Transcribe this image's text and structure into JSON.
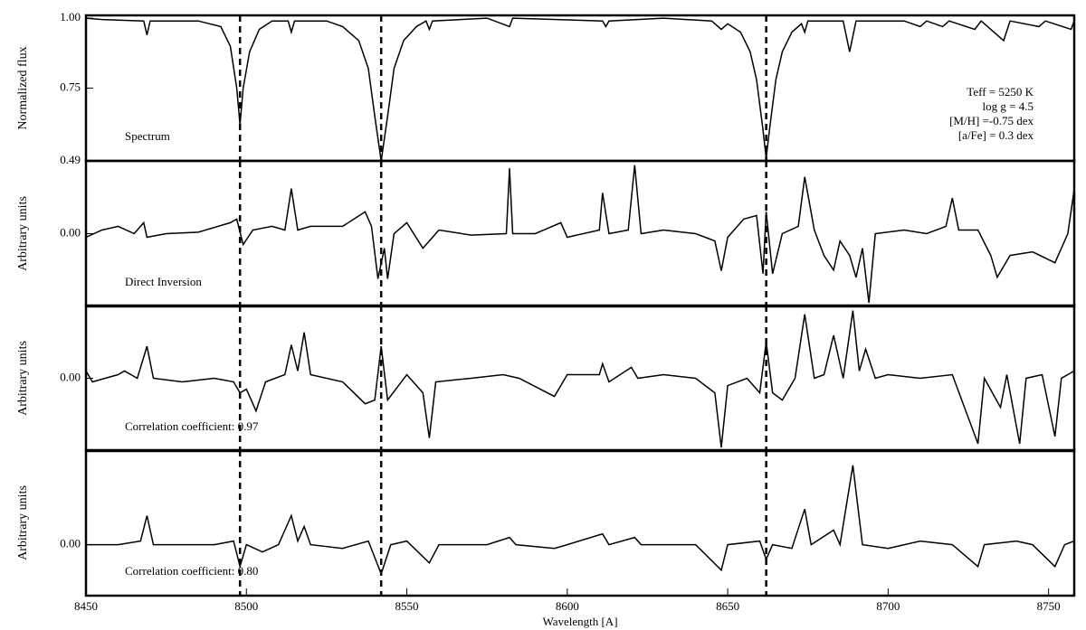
{
  "chart_data": [
    {
      "type": "line",
      "ylabel": "Normalized flux",
      "label": "Spectrum",
      "parameters": [
        "Teff = 5250 K",
        "log g = 4.5",
        "[M/H] =-0.75 dex",
        "[a/Fe] = 0.3 dex"
      ],
      "color": "#000000",
      "xlim": [
        8450,
        8758
      ],
      "ylim": [
        0.49,
        1.01
      ],
      "yticks": [
        0.49,
        0.75,
        {
          "value": 1,
          "label": "1.00"
        }
      ],
      "vlines": [
        8498,
        8542,
        8662
      ],
      "x": [
        8450,
        8455,
        8468,
        8469,
        8470,
        8485,
        8492,
        8495,
        8497,
        8498,
        8499,
        8501,
        8504,
        8508,
        8513,
        8514,
        8515,
        8525,
        8530,
        8535,
        8538,
        8540,
        8542,
        8544,
        8546,
        8549,
        8553,
        8556,
        8557,
        8558,
        8575,
        8582,
        8583,
        8611,
        8612,
        8613,
        8630,
        8645,
        8648,
        8650,
        8654,
        8657,
        8659,
        8661,
        8662,
        8663,
        8665,
        8667,
        8670,
        8673,
        8674,
        8675,
        8686,
        8688,
        8690,
        8705,
        8710,
        8712,
        8717,
        8719,
        8727,
        8729,
        8736,
        8738,
        8747,
        8749,
        8757,
        8758
      ],
      "values": [
        1.0,
        0.995,
        0.99,
        0.94,
        0.99,
        0.99,
        0.97,
        0.9,
        0.75,
        0.62,
        0.75,
        0.88,
        0.96,
        0.99,
        0.99,
        0.95,
        0.99,
        0.99,
        0.97,
        0.92,
        0.82,
        0.65,
        0.49,
        0.65,
        0.82,
        0.92,
        0.97,
        0.99,
        0.96,
        0.99,
        1.0,
        0.97,
        1.0,
        0.99,
        0.97,
        0.99,
        1.0,
        0.99,
        0.96,
        0.98,
        0.95,
        0.88,
        0.78,
        0.6,
        0.5,
        0.6,
        0.78,
        0.88,
        0.95,
        0.98,
        0.95,
        0.99,
        0.99,
        0.88,
        0.99,
        0.99,
        0.97,
        0.99,
        0.97,
        0.99,
        0.96,
        0.99,
        0.92,
        0.99,
        0.97,
        0.99,
        0.96,
        0.99
      ]
    },
    {
      "type": "line",
      "ylabel": "Arbitrary units",
      "label": "Direct Inversion",
      "color": "#000000",
      "xlim": [
        8450,
        8758
      ],
      "ylim": [
        -1,
        1
      ],
      "yticks": [
        {
          "value": 0,
          "label": "0.00"
        }
      ],
      "vlines": [
        8498,
        8542,
        8662
      ],
      "x": [
        8450,
        8455,
        8460,
        8465,
        8468,
        8469,
        8475,
        8485,
        8495,
        8497,
        8499,
        8502,
        8508,
        8512,
        8514,
        8516,
        8520,
        8530,
        8537,
        8539,
        8541,
        8543,
        8544,
        8546,
        8550,
        8555,
        8560,
        8570,
        8581,
        8582,
        8583,
        8590,
        8598,
        8600,
        8610,
        8611,
        8613,
        8619,
        8621,
        8623,
        8630,
        8640,
        8646,
        8648,
        8650,
        8655,
        8659,
        8661,
        8662,
        8664,
        8667,
        8672,
        8674,
        8677,
        8680,
        8683,
        8685,
        8688,
        8690,
        8692,
        8694,
        8696,
        8705,
        8712,
        8718,
        8720,
        8722,
        8728,
        8732,
        8734,
        8738,
        8745,
        8752,
        8756,
        8758
      ],
      "values": [
        -0.05,
        0.05,
        0.1,
        0.0,
        0.15,
        -0.05,
        0.0,
        0.02,
        0.15,
        0.2,
        -0.15,
        0.05,
        0.1,
        0.05,
        0.62,
        0.05,
        0.1,
        0.1,
        0.3,
        0.1,
        -0.62,
        -0.2,
        -0.62,
        0.0,
        0.15,
        -0.2,
        0.05,
        -0.02,
        0.0,
        0.9,
        0.0,
        0.0,
        0.15,
        -0.05,
        0.05,
        0.56,
        0.0,
        0.05,
        0.94,
        0.0,
        0.05,
        0.0,
        -0.1,
        -0.51,
        -0.05,
        0.2,
        0.25,
        -0.55,
        0.3,
        -0.55,
        0.0,
        0.1,
        0.78,
        0.05,
        -0.3,
        -0.5,
        -0.1,
        -0.3,
        -0.6,
        -0.2,
        -0.95,
        0.0,
        0.05,
        0.0,
        0.1,
        0.49,
        0.05,
        0.05,
        -0.3,
        -0.6,
        -0.3,
        -0.25,
        -0.4,
        0.0,
        0.61
      ]
    },
    {
      "type": "line",
      "ylabel": "Arbitrary units",
      "label": "Correlation coefficient: 0.97",
      "color": "#000000",
      "xlim": [
        8450,
        8758
      ],
      "ylim": [
        -1,
        1
      ],
      "yticks": [
        {
          "value": 0,
          "label": "0.00"
        }
      ],
      "vlines": [
        8498,
        8542,
        8662
      ],
      "x": [
        8450,
        8452,
        8460,
        8462,
        8466,
        8469,
        8471,
        8480,
        8490,
        8496,
        8498,
        8500,
        8503,
        8506,
        8512,
        8514,
        8516,
        8518,
        8520,
        8530,
        8537,
        8540,
        8542,
        8544,
        8550,
        8555,
        8557,
        8559,
        8570,
        8580,
        8585,
        8596,
        8600,
        8610,
        8611,
        8613,
        8620,
        8622,
        8630,
        8640,
        8646,
        8648,
        8650,
        8656,
        8660,
        8662,
        8664,
        8667,
        8671,
        8674,
        8677,
        8680,
        8683,
        8686,
        8689,
        8691,
        8693,
        8696,
        8700,
        8710,
        8720,
        8728,
        8730,
        8735,
        8737,
        8741,
        8743,
        8748,
        8752,
        8754,
        8758
      ],
      "values": [
        0.1,
        -0.05,
        0.05,
        0.1,
        0.0,
        0.44,
        0.0,
        -0.05,
        0.0,
        -0.05,
        -0.2,
        -0.15,
        -0.45,
        -0.05,
        0.05,
        0.46,
        0.1,
        0.63,
        0.05,
        -0.05,
        -0.35,
        -0.3,
        0.44,
        -0.3,
        0.05,
        -0.2,
        -0.82,
        -0.05,
        0.0,
        0.05,
        0.0,
        -0.25,
        0.05,
        0.05,
        0.2,
        -0.05,
        0.15,
        0.0,
        0.05,
        0.0,
        -0.2,
        -0.95,
        -0.1,
        0.0,
        -0.2,
        0.5,
        -0.2,
        -0.3,
        0.0,
        0.88,
        0.0,
        0.05,
        0.59,
        0.0,
        0.93,
        0.1,
        0.4,
        0.0,
        0.05,
        0.0,
        0.05,
        -0.9,
        0.0,
        -0.4,
        0.05,
        -0.9,
        0.0,
        0.05,
        -0.8,
        0.0,
        0.1
      ]
    },
    {
      "type": "line",
      "ylabel": "Arbitrary units",
      "label": "Correlation coefficient: 0.80",
      "xlabel": "Wavelength [A]",
      "color": "#000000",
      "xlim": [
        8450,
        8758
      ],
      "ylim": [
        -0.7,
        1.3
      ],
      "yticks": [
        {
          "value": 0,
          "label": "0.00"
        }
      ],
      "xticks": [
        8450,
        8500,
        8550,
        8600,
        8650,
        8700,
        8750
      ],
      "vlines": [
        8498,
        8542,
        8662
      ],
      "x": [
        8450,
        8460,
        8467,
        8469,
        8471,
        8480,
        8490,
        8496,
        8498,
        8500,
        8505,
        8510,
        8514,
        8516,
        8518,
        8520,
        8530,
        8538,
        8542,
        8545,
        8550,
        8557,
        8560,
        8575,
        8582,
        8584,
        8596,
        8600,
        8611,
        8613,
        8621,
        8623,
        8640,
        8648,
        8650,
        8660,
        8662,
        8664,
        8670,
        8674,
        8676,
        8683,
        8685,
        8689,
        8692,
        8700,
        8710,
        8720,
        8728,
        8730,
        8740,
        8745,
        8752,
        8755,
        8758
      ],
      "values": [
        0.0,
        0.0,
        0.05,
        0.4,
        0.0,
        0.0,
        0.0,
        0.05,
        -0.3,
        0.0,
        -0.1,
        0.0,
        0.4,
        0.05,
        0.25,
        0.0,
        -0.05,
        0.05,
        -0.4,
        0.0,
        0.05,
        -0.25,
        0.0,
        0.0,
        0.1,
        0.0,
        -0.05,
        0.0,
        0.15,
        0.0,
        0.1,
        0.0,
        0.0,
        -0.35,
        0.0,
        0.05,
        -0.2,
        0.0,
        -0.05,
        0.49,
        0.0,
        0.2,
        0.0,
        1.09,
        0.0,
        -0.05,
        0.05,
        0.0,
        -0.3,
        0.0,
        0.05,
        0.0,
        -0.3,
        0.0,
        0.05
      ]
    }
  ]
}
